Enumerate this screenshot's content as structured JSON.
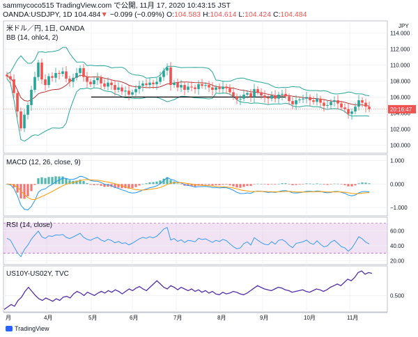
{
  "header": {
    "line1": "sammycoco515 TradingView.com で公開, 11月 17, 2020 10:43:15 JST",
    "symbol": "OANDA:USDJPY, 1D",
    "last": "104.484",
    "change": "−0.099 (−0.09%)",
    "o_label": "O:",
    "o": "104.583",
    "h_label": "H:",
    "h": "104.614",
    "l_label": "L:",
    "l": "104.424",
    "c_label": "C:",
    "c": "104.484"
  },
  "footer": {
    "brand": "TradingView"
  },
  "colors": {
    "up": "#26a69a",
    "down": "#ef5350",
    "bb": "#26a69a",
    "bb_mid": "#b71c1c",
    "macd": "#2196f3",
    "signal": "#ff9800",
    "rsi": "#2196f3",
    "rsi_band": "#e1bee7",
    "yield": "#512da8",
    "price_tag": "#ef5350"
  },
  "chart_data": [
    {
      "type": "candlestick",
      "title": "米ドル／円, 1日, OANDA",
      "indicator": "BB (14, ohlc4, 2)",
      "currency": "JPY",
      "price_tag": "20:16:47",
      "ylim": [
        99,
        115.5
      ],
      "yticks": [
        "114.000",
        "112.000",
        "110.000",
        "108.000",
        "106.000",
        "104.000",
        "102.000",
        "100.000"
      ],
      "ytick_values": [
        114,
        112,
        110,
        108,
        106,
        104,
        102,
        100
      ],
      "support_line": {
        "value": 106.0,
        "from": "5月",
        "to": "9月"
      },
      "close_path": [
        108.6,
        108.2,
        106.5,
        104.2,
        102.1,
        103.8,
        105.0,
        106.9,
        108.5,
        110.3,
        108.2,
        107.5,
        108.6,
        108.4,
        109.0,
        108.9,
        109.2,
        108.3,
        107.9,
        108.4,
        109.0,
        109.6,
        108.5,
        107.9,
        107.6,
        108.1,
        108.4,
        107.7,
        107.3,
        107.8,
        107.5,
        106.9,
        107.2,
        106.7,
        106.8,
        106.3,
        106.6,
        107.0,
        107.4,
        107.7,
        107.5,
        107.8,
        107.6,
        107.9,
        108.5,
        109.3,
        109.7,
        107.5,
        107.8,
        107.2,
        107.5,
        106.9,
        107.3,
        107.2,
        107.0,
        107.6,
        107.4,
        107.5,
        107.2,
        106.9,
        107.2,
        107.0,
        107.3,
        107.1,
        106.6,
        106.1,
        105.7,
        105.8,
        106.3,
        106.5,
        106.0,
        107.0,
        106.6,
        106.2,
        105.9,
        105.8,
        106.2,
        105.8,
        106.3,
        106.4,
        106.1,
        105.5,
        105.1,
        105.6,
        105.7,
        105.8,
        106.0,
        105.6,
        105.4,
        105.8,
        105.3,
        104.9,
        105.0,
        105.4,
        105.6,
        105.2,
        104.7,
        104.5,
        103.9,
        104.2,
        104.8,
        105.6,
        105.3,
        104.8,
        104.5
      ],
      "x_labels": [
        "月",
        "4月",
        "5月",
        "6月",
        "7月",
        "8月",
        "9月",
        "10月",
        "11月"
      ]
    },
    {
      "type": "macd",
      "indicator": "MACD (12, 26, close, 9)",
      "ylim": [
        -1.35,
        1.25
      ],
      "yticks": [
        "1.000",
        "0.000",
        "−1.000"
      ],
      "ytick_values": [
        1.0,
        0.0,
        -1.0
      ]
    },
    {
      "type": "line",
      "indicator": "RSI (14, close)",
      "ylim": [
        15,
        78
      ],
      "band": [
        30,
        70
      ],
      "yticks": [
        "60.00",
        "40.00",
        "20.00"
      ],
      "ytick_values": [
        60,
        40,
        20
      ]
    },
    {
      "type": "line",
      "indicator": "US10Y-US02Y, TVC",
      "ylim": [
        0.3,
        0.86
      ],
      "yticks": [
        "0.500"
      ],
      "ytick_values": [
        0.5
      ],
      "values": [
        0.33,
        0.36,
        0.39,
        0.37,
        0.44,
        0.48,
        0.55,
        0.6,
        0.55,
        0.5,
        0.46,
        0.44,
        0.47,
        0.45,
        0.43,
        0.46,
        0.44,
        0.48,
        0.49,
        0.47,
        0.52,
        0.55,
        0.53,
        0.5,
        0.54,
        0.52,
        0.5,
        0.53,
        0.55,
        0.53,
        0.56,
        0.54,
        0.57,
        0.55,
        0.52,
        0.55,
        0.58,
        0.56,
        0.59,
        0.61,
        0.58,
        0.56,
        0.6,
        0.64,
        0.68,
        0.64,
        0.6,
        0.58,
        0.62,
        0.6,
        0.57,
        0.6,
        0.58,
        0.56,
        0.58,
        0.55,
        0.57,
        0.54,
        0.56,
        0.53,
        0.55,
        0.52,
        0.51,
        0.54,
        0.52,
        0.53,
        0.55,
        0.54,
        0.52,
        0.51,
        0.53,
        0.56,
        0.59,
        0.62,
        0.6,
        0.58,
        0.57,
        0.56,
        0.58,
        0.6,
        0.59,
        0.57,
        0.56,
        0.54,
        0.55,
        0.56,
        0.57,
        0.55,
        0.54,
        0.56,
        0.58,
        0.57,
        0.55,
        0.57,
        0.6,
        0.62,
        0.64,
        0.62,
        0.66,
        0.7,
        0.68,
        0.72,
        0.78,
        0.8,
        0.76,
        0.78,
        0.77
      ]
    }
  ]
}
